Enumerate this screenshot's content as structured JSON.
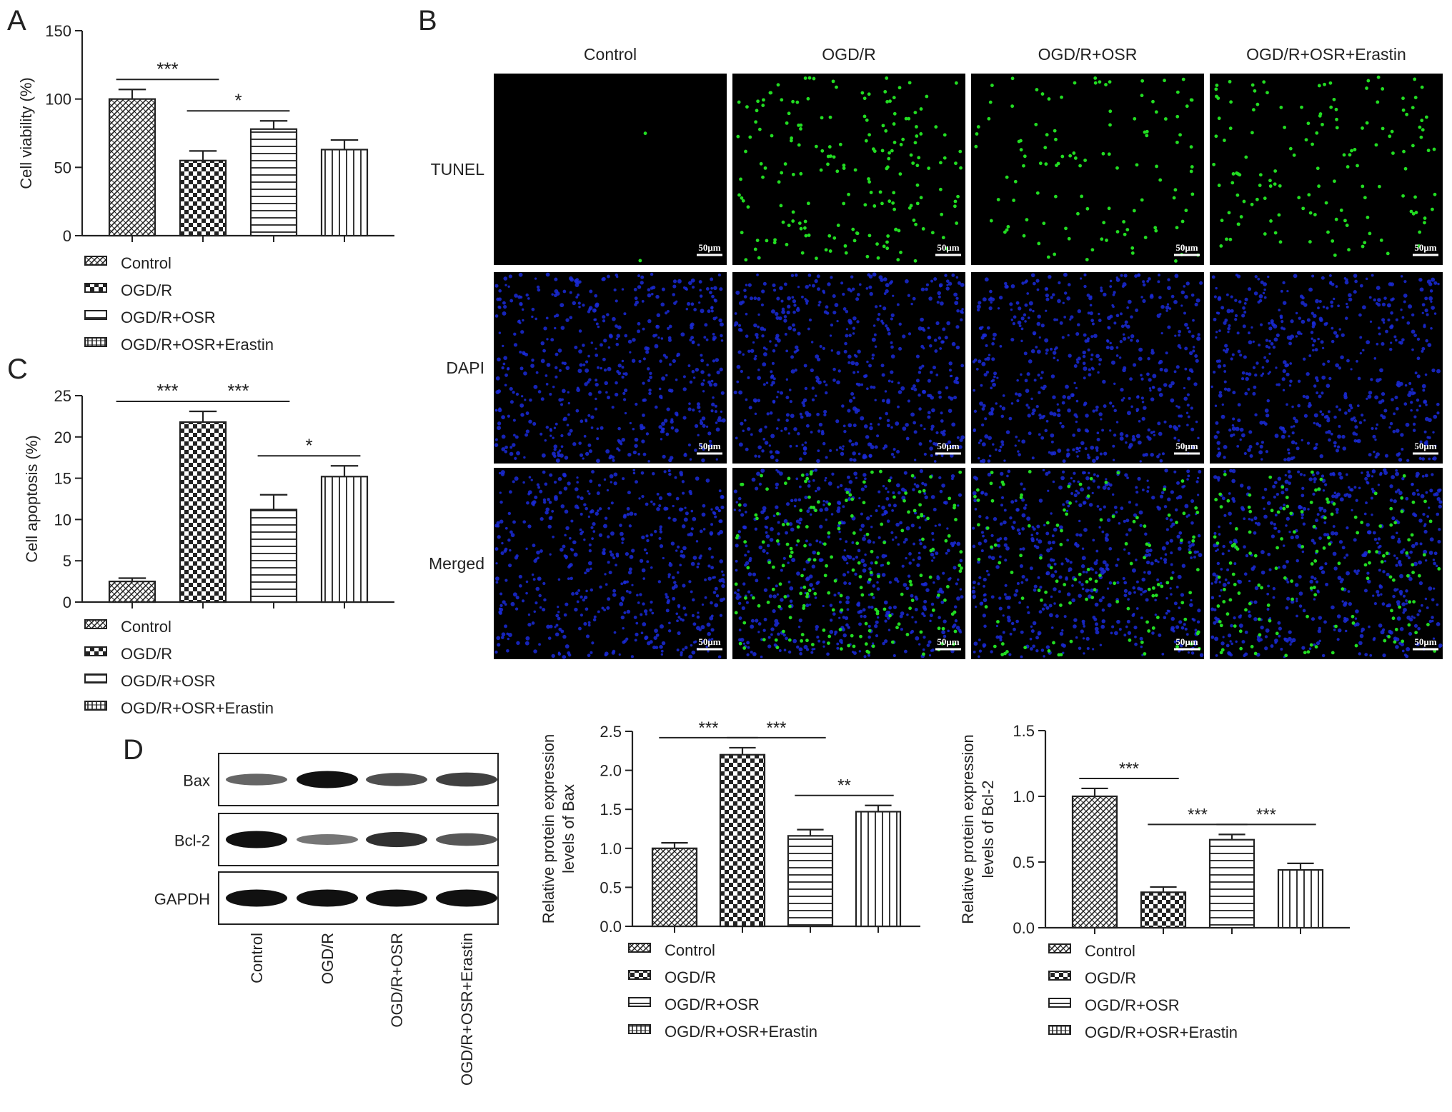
{
  "panels": {
    "A": "A",
    "B": "B",
    "C": "C",
    "D": "D"
  },
  "legend_groups": [
    "Control",
    "OGD/R",
    "OGD/R+OSR",
    "OGD/R+OSR+Erastin"
  ],
  "colors": {
    "ink": "#222222",
    "bar_fill": "#ffffff",
    "micro_bg": "#000000",
    "tunel_green": "#22dd22",
    "dapi_blue": "#1a2ad8"
  },
  "chart_data": [
    {
      "id": "A",
      "type": "bar",
      "ylabel": "Cell viability (%)",
      "ylim": [
        0,
        150
      ],
      "yticks": [
        0,
        50,
        100,
        150
      ],
      "categories": [
        "Control",
        "OGD/R",
        "OGD/R+OSR",
        "OGD/R+OSR+Erastin"
      ],
      "values": [
        100,
        55,
        78,
        63
      ],
      "errors": [
        7,
        7,
        6,
        7
      ],
      "legend": [
        "Control",
        "OGD/R",
        "OGD/R+OSR",
        "OGD/R+OSR+Erastin"
      ],
      "significance": [
        {
          "from": 0,
          "to": 1,
          "label": "***"
        },
        {
          "from": 1,
          "to": 2,
          "label": "*"
        }
      ]
    },
    {
      "id": "C",
      "type": "bar",
      "ylabel": "Cell apoptosis (%)",
      "ylim": [
        0,
        25
      ],
      "yticks": [
        0,
        5,
        10,
        15,
        20,
        25
      ],
      "categories": [
        "Control",
        "OGD/R",
        "OGD/R+OSR",
        "OGD/R+OSR+Erastin"
      ],
      "values": [
        2.5,
        21.8,
        11.2,
        15.2
      ],
      "errors": [
        0.4,
        1.3,
        1.8,
        1.3
      ],
      "legend": [
        "Control",
        "OGD/R",
        "OGD/R+OSR",
        "OGD/R+OSR+Erastin"
      ],
      "significance": [
        {
          "from": 0,
          "to": 1,
          "label": "***"
        },
        {
          "from": 1,
          "to": 2,
          "label": "***"
        },
        {
          "from": 2,
          "to": 3,
          "label": "*"
        }
      ]
    },
    {
      "id": "D-Bax",
      "type": "bar",
      "ylabel": "Relative protein expression levels of Bax",
      "ylabel_lines": [
        "Relative protein expression",
        "levels of Bax"
      ],
      "ylim": [
        0,
        2.5
      ],
      "yticks": [
        0.0,
        0.5,
        1.0,
        1.5,
        2.0,
        2.5
      ],
      "yticks_label": [
        "0.0",
        "0.5",
        "1.0",
        "1.5",
        "2.0",
        "2.5"
      ],
      "categories": [
        "Control",
        "OGD/R",
        "OGD/R+OSR",
        "OGD/R+OSR+Erastin"
      ],
      "values": [
        1.0,
        2.2,
        1.16,
        1.47
      ],
      "errors": [
        0.07,
        0.09,
        0.08,
        0.08
      ],
      "legend": [
        "Control",
        "OGD/R",
        "OGD/R+OSR",
        "OGD/R+OSR+Erastin"
      ],
      "significance": [
        {
          "from": 0,
          "to": 1,
          "label": "***"
        },
        {
          "from": 1,
          "to": 2,
          "label": "***"
        },
        {
          "from": 2,
          "to": 3,
          "label": "**"
        }
      ]
    },
    {
      "id": "D-Bcl2",
      "type": "bar",
      "ylabel": "Relative protein expression levels of Bcl-2",
      "ylabel_lines": [
        "Relative protein expression",
        "levels of Bcl-2"
      ],
      "ylim": [
        0,
        1.5
      ],
      "yticks": [
        0.0,
        0.5,
        1.0,
        1.5
      ],
      "yticks_label": [
        "0.0",
        "0.5",
        "1.0",
        "1.5"
      ],
      "categories": [
        "Control",
        "OGD/R",
        "OGD/R+OSR",
        "OGD/R+OSR+Erastin"
      ],
      "values": [
        1.0,
        0.27,
        0.67,
        0.44
      ],
      "errors": [
        0.06,
        0.04,
        0.04,
        0.05
      ],
      "legend": [
        "Control",
        "OGD/R",
        "OGD/R+OSR",
        "OGD/R+OSR+Erastin"
      ],
      "significance": [
        {
          "from": 0,
          "to": 1,
          "label": "***"
        },
        {
          "from": 1,
          "to": 2,
          "label": "***"
        },
        {
          "from": 2,
          "to": 3,
          "label": "***"
        }
      ]
    }
  ],
  "microscopy": {
    "columns": [
      "Control",
      "OGD/R",
      "OGD/R+OSR",
      "OGD/R+OSR+Erastin"
    ],
    "rows": [
      "TUNEL",
      "DAPI",
      "Merged"
    ],
    "scale_bar": "50μm",
    "tunel_positive_relative": [
      0.01,
      1.0,
      0.6,
      0.75
    ]
  },
  "western_blot": {
    "rows": [
      "Bax",
      "Bcl-2",
      "GAPDH"
    ],
    "lanes": [
      "Control",
      "OGD/R",
      "OGD/R+OSR",
      "OGD/R+OSR+Erastin"
    ],
    "band_intensity": {
      "Bax": [
        0.45,
        1.0,
        0.6,
        0.7
      ],
      "Bcl-2": [
        1.0,
        0.35,
        0.8,
        0.55
      ],
      "GAPDH": [
        1.0,
        1.0,
        1.0,
        1.0
      ]
    }
  }
}
